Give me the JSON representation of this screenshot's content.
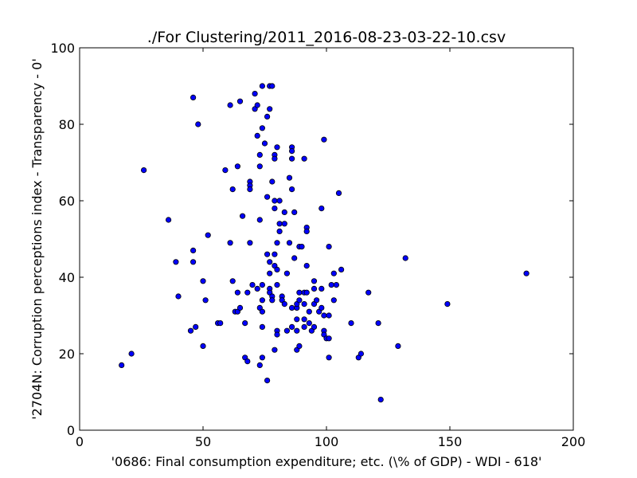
{
  "chart_data": {
    "type": "scatter",
    "title": "./For Clustering/2011_2016-08-23-03-22-10.csv",
    "xlabel": "'0686: Final consumption expenditure; etc.  (\\% of GDP) - WDI - 618'",
    "ylabel": "'2704N: Corruption perceptions index - Transparency - 0'",
    "xlim": [
      0,
      200
    ],
    "ylim": [
      0,
      100
    ],
    "xticks": [
      "0",
      "50",
      "100",
      "150",
      "200"
    ],
    "yticks": [
      "0",
      "20",
      "40",
      "60",
      "80",
      "100"
    ],
    "marker_color": "#0000ff",
    "points": [
      [
        17,
        17
      ],
      [
        21,
        20
      ],
      [
        26,
        68
      ],
      [
        36,
        55
      ],
      [
        39,
        44
      ],
      [
        40,
        35
      ],
      [
        45,
        26
      ],
      [
        46,
        44
      ],
      [
        46,
        47
      ],
      [
        46,
        87
      ],
      [
        47,
        27
      ],
      [
        48,
        80
      ],
      [
        50,
        22
      ],
      [
        50,
        39
      ],
      [
        51,
        34
      ],
      [
        52,
        51
      ],
      [
        56,
        28
      ],
      [
        57,
        28
      ],
      [
        59,
        68
      ],
      [
        61,
        85
      ],
      [
        61,
        49
      ],
      [
        62,
        63
      ],
      [
        62,
        39
      ],
      [
        63,
        31
      ],
      [
        64,
        36
      ],
      [
        64,
        69
      ],
      [
        64,
        31
      ],
      [
        65,
        32
      ],
      [
        65,
        86
      ],
      [
        66,
        56
      ],
      [
        67,
        28
      ],
      [
        67,
        19
      ],
      [
        68,
        18
      ],
      [
        68,
        36
      ],
      [
        69,
        65
      ],
      [
        69,
        64
      ],
      [
        69,
        63
      ],
      [
        69,
        49
      ],
      [
        70,
        38
      ],
      [
        71,
        84
      ],
      [
        71,
        88
      ],
      [
        72,
        85
      ],
      [
        72,
        37
      ],
      [
        72,
        77
      ],
      [
        73,
        72
      ],
      [
        73,
        69
      ],
      [
        73,
        55
      ],
      [
        73,
        32
      ],
      [
        73,
        17
      ],
      [
        74,
        27
      ],
      [
        74,
        79
      ],
      [
        74,
        90
      ],
      [
        74,
        38
      ],
      [
        74,
        34
      ],
      [
        74,
        31
      ],
      [
        74,
        19
      ],
      [
        75,
        75
      ],
      [
        76,
        46
      ],
      [
        76,
        82
      ],
      [
        76,
        61
      ],
      [
        76,
        13
      ],
      [
        77,
        90
      ],
      [
        77,
        84
      ],
      [
        77,
        44
      ],
      [
        77,
        41
      ],
      [
        77,
        37
      ],
      [
        77,
        36
      ],
      [
        78,
        90
      ],
      [
        78,
        35
      ],
      [
        78,
        34
      ],
      [
        78,
        65
      ],
      [
        79,
        72
      ],
      [
        79,
        60
      ],
      [
        79,
        58
      ],
      [
        79,
        43
      ],
      [
        79,
        21
      ],
      [
        79,
        46
      ],
      [
        79,
        71
      ],
      [
        80,
        74
      ],
      [
        80,
        49
      ],
      [
        80,
        42
      ],
      [
        80,
        38
      ],
      [
        80,
        26
      ],
      [
        80,
        25
      ],
      [
        81,
        54
      ],
      [
        81,
        52
      ],
      [
        81,
        60
      ],
      [
        82,
        35
      ],
      [
        82,
        34
      ],
      [
        83,
        33
      ],
      [
        83,
        54
      ],
      [
        83,
        57
      ],
      [
        84,
        41
      ],
      [
        84,
        26
      ],
      [
        85,
        66
      ],
      [
        85,
        49
      ],
      [
        86,
        74
      ],
      [
        86,
        73
      ],
      [
        86,
        32
      ],
      [
        86,
        27
      ],
      [
        86,
        71
      ],
      [
        86,
        63
      ],
      [
        87,
        45
      ],
      [
        87,
        57
      ],
      [
        88,
        32
      ],
      [
        88,
        33
      ],
      [
        88,
        26
      ],
      [
        88,
        29
      ],
      [
        88,
        21
      ],
      [
        89,
        22
      ],
      [
        89,
        34
      ],
      [
        89,
        36
      ],
      [
        89,
        48
      ],
      [
        90,
        48
      ],
      [
        91,
        71
      ],
      [
        91,
        36
      ],
      [
        91,
        33
      ],
      [
        91,
        29
      ],
      [
        91,
        27
      ],
      [
        92,
        53
      ],
      [
        92,
        52
      ],
      [
        92,
        43
      ],
      [
        92,
        36
      ],
      [
        93,
        31
      ],
      [
        93,
        28
      ],
      [
        94,
        26
      ],
      [
        95,
        39
      ],
      [
        95,
        37
      ],
      [
        95,
        33
      ],
      [
        95,
        27
      ],
      [
        96,
        34
      ],
      [
        97,
        31
      ],
      [
        98,
        58
      ],
      [
        98,
        37
      ],
      [
        98,
        32
      ],
      [
        99,
        76
      ],
      [
        99,
        30
      ],
      [
        99,
        26
      ],
      [
        99,
        25
      ],
      [
        100,
        24
      ],
      [
        101,
        48
      ],
      [
        101,
        19
      ],
      [
        101,
        30
      ],
      [
        101,
        24
      ],
      [
        102,
        38
      ],
      [
        103,
        41
      ],
      [
        103,
        34
      ],
      [
        104,
        38
      ],
      [
        105,
        62
      ],
      [
        106,
        42
      ],
      [
        110,
        28
      ],
      [
        113,
        19
      ],
      [
        114,
        20
      ],
      [
        117,
        36
      ],
      [
        121,
        28
      ],
      [
        122,
        8
      ],
      [
        129,
        22
      ],
      [
        132,
        45
      ],
      [
        149,
        33
      ],
      [
        181,
        41
      ]
    ]
  }
}
